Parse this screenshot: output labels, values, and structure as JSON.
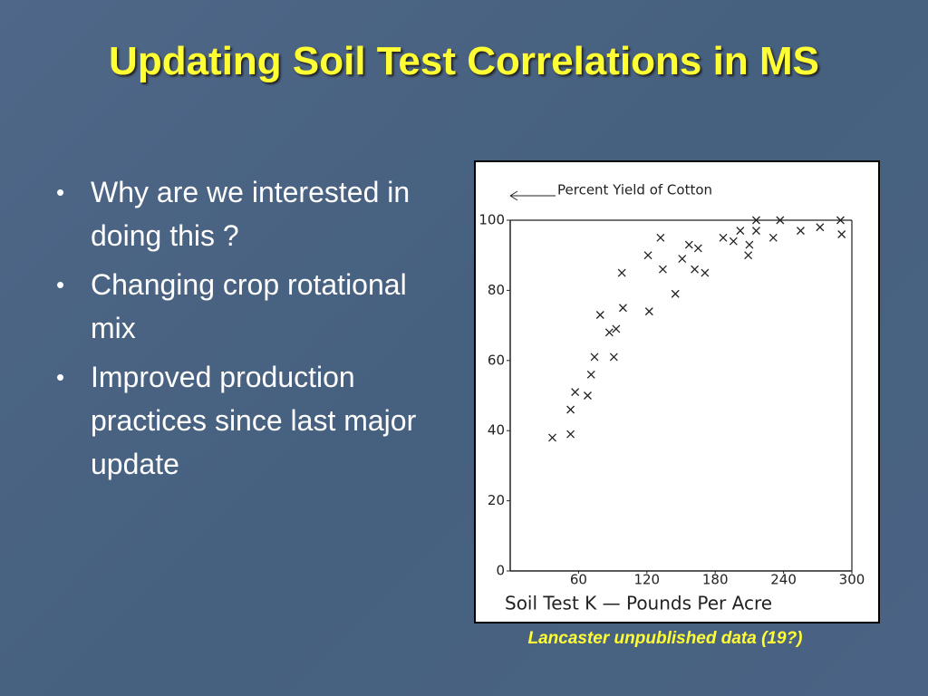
{
  "title": "Updating Soil Test Correlations in MS",
  "bullets": [
    "Why are we interested in doing this ?",
    "Changing crop rotational mix",
    "Improved production practices since last major update"
  ],
  "caption": "Lancaster unpublished data (19?)",
  "chart_data": {
    "type": "scatter",
    "ylabel": "Percent Yield of Cotton",
    "xlabel": "Soil Test K — Pounds Per Acre",
    "x": [
      37,
      53,
      53,
      57,
      68,
      71,
      74,
      79,
      87,
      93,
      91,
      99,
      98,
      122,
      121,
      132,
      134,
      145,
      151,
      157,
      162,
      171,
      165,
      187,
      196,
      202,
      209,
      210,
      216,
      216,
      231,
      237,
      255,
      272,
      290,
      291
    ],
    "values": [
      38,
      39,
      46,
      51,
      50,
      56,
      61,
      73,
      68,
      69,
      61,
      75,
      85,
      74,
      90,
      95,
      86,
      79,
      89,
      93,
      86,
      85,
      92,
      95,
      94,
      97,
      90,
      93,
      100,
      97,
      95,
      100,
      97,
      98,
      100,
      96
    ],
    "xlim": [
      0,
      300
    ],
    "ylim": [
      0,
      100
    ],
    "xticks": [
      60,
      120,
      180,
      240,
      300
    ],
    "yticks": [
      0,
      20,
      40,
      60,
      80,
      100
    ],
    "color": "#222222"
  }
}
